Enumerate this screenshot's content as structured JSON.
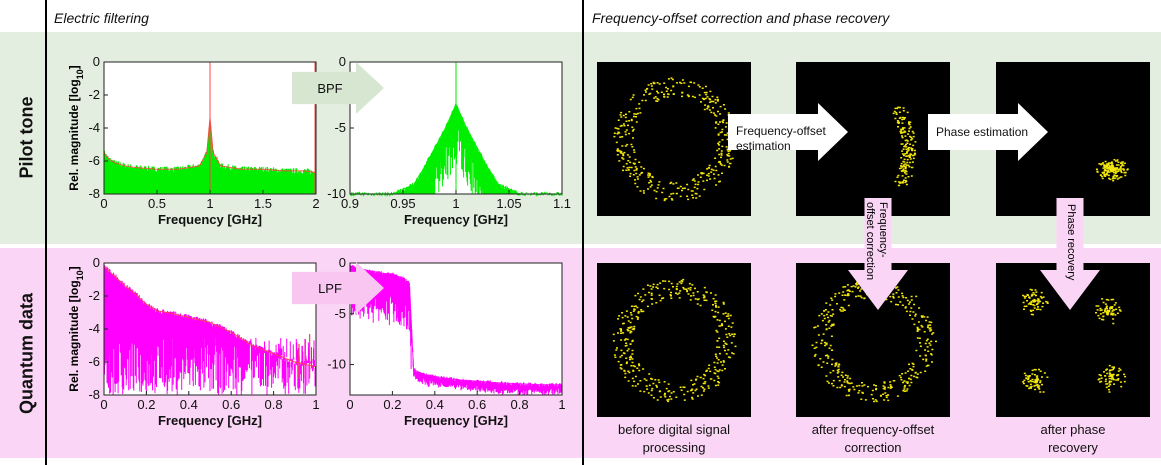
{
  "headers": {
    "left": "Electric filtering",
    "right": "Frequency-offset correction and phase recovery"
  },
  "rows": {
    "pilot": "Pilot tone",
    "quantum": "Quantum data"
  },
  "colors": {
    "pilot_band": "#e3eee0",
    "quantum_band": "#fbd5f5",
    "pilot_trace": "#00ee00",
    "quantum_trace": "#ff00ff",
    "overlay_trace": "#ff4444",
    "constellation": "#f2e60a",
    "arrow_pilot": "#e3eee0",
    "arrow_quantum": "#fbd5f5"
  },
  "filters": {
    "bpf": "BPF",
    "lpf": "LPF"
  },
  "chart_data": [
    {
      "id": "pilot-full",
      "type": "area",
      "xlabel": "Frequency [GHz]",
      "ylabel": "Rel. magnitude [log10]",
      "xlim": [
        0,
        2
      ],
      "ylim": [
        -8,
        0
      ],
      "xticks": [
        "0",
        "0.5",
        "1",
        "1.5",
        "2"
      ],
      "yticks": [
        "0",
        "-2",
        "-4",
        "-6",
        "-8"
      ],
      "series": [
        {
          "x": [
            0,
            0.05,
            0.1,
            0.2,
            0.3,
            0.5,
            0.7,
            0.9,
            0.97,
            1.0,
            1.03,
            1.1,
            1.3,
            1.5,
            1.7,
            1.9,
            2.0
          ],
          "values": [
            -5.5,
            -5.9,
            -6.1,
            -6.3,
            -6.4,
            -6.5,
            -6.5,
            -6.3,
            -5.5,
            -3.4,
            -5.5,
            -6.3,
            -6.5,
            -6.5,
            -6.6,
            -6.6,
            -6.7
          ]
        }
      ]
    },
    {
      "id": "pilot-zoom",
      "type": "area",
      "xlabel": "Frequency [GHz]",
      "ylabel": "",
      "xlim": [
        0.9,
        1.1
      ],
      "ylim": [
        -10,
        0
      ],
      "xticks": [
        "0.9",
        "0.95",
        "1",
        "1.05",
        "1.1"
      ],
      "yticks": [
        "0",
        "-5",
        "-10"
      ],
      "series": [
        {
          "x": [
            0.9,
            0.94,
            0.96,
            0.97,
            0.98,
            0.99,
            1.0,
            1.01,
            1.02,
            1.03,
            1.04,
            1.06,
            1.1
          ],
          "values": [
            -10,
            -10,
            -9.3,
            -8,
            -6.5,
            -5,
            -3.2,
            -5,
            -6.5,
            -8,
            -9.3,
            -10,
            -10
          ]
        }
      ]
    },
    {
      "id": "quantum-full",
      "type": "area",
      "xlabel": "Frequency [GHz]",
      "ylabel": "Rel. magnitude [log10]",
      "xlim": [
        0,
        1
      ],
      "ylim": [
        -8,
        0
      ],
      "xticks": [
        "0",
        "0.2",
        "0.4",
        "0.6",
        "0.8",
        "1"
      ],
      "yticks": [
        "0",
        "-2",
        "-4",
        "-6",
        "-8"
      ],
      "series": [
        {
          "x": [
            0,
            0.05,
            0.1,
            0.15,
            0.2,
            0.25,
            0.3,
            0.4,
            0.5,
            0.6,
            0.7,
            0.8,
            0.9,
            1.0
          ],
          "values": [
            -0.2,
            -0.8,
            -1.4,
            -1.9,
            -2.5,
            -2.9,
            -3.0,
            -3.3,
            -3.6,
            -4.2,
            -5.0,
            -5.5,
            -6.0,
            -6.3
          ]
        }
      ]
    },
    {
      "id": "quantum-filtered",
      "type": "area",
      "xlabel": "Frequency [GHz]",
      "ylabel": "",
      "xlim": [
        0,
        1
      ],
      "ylim": [
        -13,
        0
      ],
      "xticks": [
        "0",
        "0.2",
        "0.4",
        "0.6",
        "0.8",
        "1"
      ],
      "yticks": [
        "0",
        "-5",
        "-10"
      ],
      "series": [
        {
          "x": [
            0,
            0.05,
            0.1,
            0.15,
            0.2,
            0.25,
            0.28,
            0.3,
            0.35,
            0.5,
            0.7,
            0.9,
            1.0
          ],
          "values": [
            -0.3,
            -0.6,
            -0.8,
            -1.0,
            -1.1,
            -1.5,
            -2.0,
            -10.5,
            -11.0,
            -11.5,
            -11.8,
            -12.0,
            -12.0
          ]
        }
      ]
    }
  ],
  "constellations": {
    "pilot": [
      {
        "shape": "ring",
        "caption": ""
      },
      {
        "shape": "arc",
        "caption": ""
      },
      {
        "shape": "cluster",
        "caption": ""
      }
    ],
    "quantum": [
      {
        "shape": "ring",
        "caption": "before digital signal processing"
      },
      {
        "shape": "ring",
        "caption": "after frequency-offset correction"
      },
      {
        "shape": "quad",
        "caption": "after phase recovery"
      }
    ]
  },
  "arrows": {
    "fo_estimation": "Frequency-offset estimation",
    "phase_estimation": "Phase estimation",
    "fo_correction": "Frequency-offset correction",
    "phase_recovery": "Phase recovery"
  }
}
